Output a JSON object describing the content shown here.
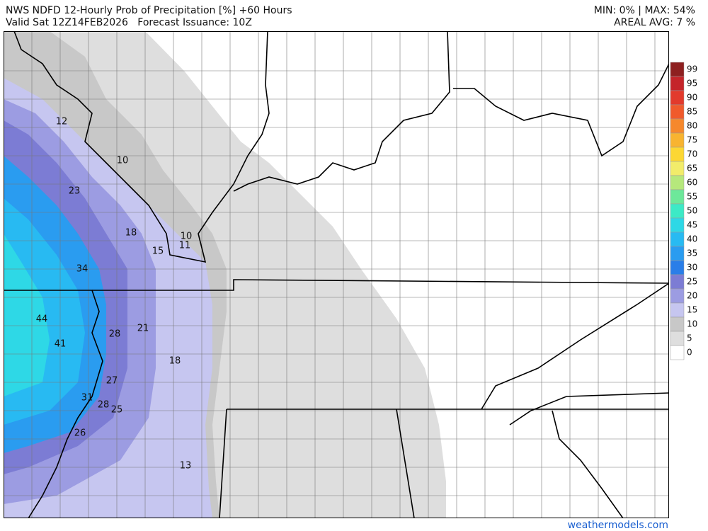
{
  "header": {
    "title": "NWS NDFD 12-Hourly Prob of Precipitation [%] +60 Hours",
    "valid": "Valid Sat 12Z14FEB2026   Forecast Issuance: 10Z",
    "minmax": "MIN: 0% | MAX: 54%",
    "areal_avg": "AREAL AVG: 7 %"
  },
  "legend": {
    "items": [
      {
        "value": 99,
        "color": "#8e2020"
      },
      {
        "value": 95,
        "color": "#c4252a"
      },
      {
        "value": 90,
        "color": "#e23a2c"
      },
      {
        "value": 85,
        "color": "#f05a2c"
      },
      {
        "value": 80,
        "color": "#f6882c"
      },
      {
        "value": 75,
        "color": "#f8b430"
      },
      {
        "value": 70,
        "color": "#fcd733"
      },
      {
        "value": 65,
        "color": "#f2ec6a"
      },
      {
        "value": 60,
        "color": "#b6e87c"
      },
      {
        "value": 55,
        "color": "#6de89a"
      },
      {
        "value": 50,
        "color": "#3ceac6"
      },
      {
        "value": 45,
        "color": "#2ed8e6"
      },
      {
        "value": 40,
        "color": "#28baf2"
      },
      {
        "value": 35,
        "color": "#2a9cf0"
      },
      {
        "value": 30,
        "color": "#2a7ee8"
      },
      {
        "value": 25,
        "color": "#7c7cd4"
      },
      {
        "value": 20,
        "color": "#9c9ce2"
      },
      {
        "value": 15,
        "color": "#c6c6f0"
      },
      {
        "value": 10,
        "color": "#c8c8c8"
      },
      {
        "value": 5,
        "color": "#dedede"
      },
      {
        "value": 0,
        "color": "#ffffff"
      }
    ]
  },
  "points": [
    12,
    10,
    23,
    18,
    10,
    15,
    11,
    34,
    44,
    28,
    21,
    41,
    18,
    27,
    31,
    28,
    25,
    26,
    13
  ],
  "footer": {
    "watermark": "weathermodels.com"
  }
}
